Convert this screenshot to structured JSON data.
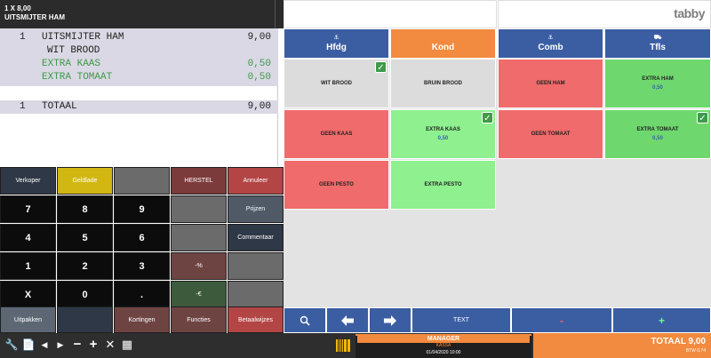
{
  "order_header": {
    "line1": "1  X 8,00",
    "line2": "UITSMIJTER HAM"
  },
  "receipt": {
    "lines": [
      {
        "qty": "1",
        "name": "UITSMIJTER HAM",
        "price": "9,00",
        "style": "main"
      },
      {
        "qty": "",
        "name": "WIT BROOD",
        "price": "",
        "style": "sub"
      },
      {
        "qty": "",
        "name": "EXTRA KAAS",
        "price": "0,50",
        "style": "extra"
      },
      {
        "qty": "",
        "name": "EXTRA TOMAAT",
        "price": "0,50",
        "style": "extra"
      }
    ],
    "total": {
      "qty": "1",
      "label": "TOTAAL",
      "price": "9,00"
    }
  },
  "logo": "tabby",
  "categories": [
    {
      "label": "Hfdg",
      "icon": "utensils-icon",
      "color": "#3b5ea3"
    },
    {
      "label": "Kond",
      "icon": "",
      "color": "#f28a3f"
    },
    {
      "label": "Comb",
      "icon": "utensils-icon",
      "color": "#3b5ea3"
    },
    {
      "label": "Tfls",
      "icon": "car-icon",
      "color": "#3b5ea3"
    }
  ],
  "products": [
    {
      "label": "WIT BROOD",
      "price": "",
      "checked": true,
      "color": "#dcdcdc"
    },
    {
      "label": "BRUIN BROOD",
      "price": "",
      "checked": false,
      "color": "#dcdcdc"
    },
    {
      "label": "GEEN HAM",
      "price": "",
      "checked": false,
      "color": "#f06b6b"
    },
    {
      "label": "EXTRA HAM",
      "price": "0,50",
      "checked": false,
      "color": "#6ed86e"
    },
    {
      "label": "GEEN KAAS",
      "price": "",
      "checked": false,
      "color": "#f06b6b"
    },
    {
      "label": "EXTRA KAAS",
      "price": "0,50",
      "checked": true,
      "color": "#8ef08e"
    },
    {
      "label": "GEEN TOMAAT",
      "price": "",
      "checked": false,
      "color": "#f06b6b"
    },
    {
      "label": "EXTRA TOMAAT",
      "price": "0,50",
      "checked": true,
      "color": "#6ed86e"
    },
    {
      "label": "GEEN PESTO",
      "price": "",
      "checked": false,
      "color": "#f06b6b"
    },
    {
      "label": "EXTRA PESTO",
      "price": "",
      "checked": false,
      "color": "#8ef08e"
    }
  ],
  "keypad": {
    "verkoper": "Verkoper",
    "geldlade": "Geldlade",
    "herstel": "HERSTEL",
    "annuleer": "Annuleer",
    "prijzen": "Prijzen",
    "commentaar": "Commentaar",
    "percent": "-%",
    "euro": "-€",
    "digits": [
      "7",
      "8",
      "9",
      "4",
      "5",
      "6",
      "1",
      "2",
      "3"
    ],
    "x": "X",
    "zero": "0",
    "dot": ".",
    "uitpakken": "Uitpakken",
    "kortingen": "Kortingen",
    "functies": "Functies",
    "betaalwijzes": "Betaalwijzes"
  },
  "actions": {
    "text": "TEXT",
    "minus": "-",
    "plus": "+"
  },
  "footer": {
    "manager": "MANAGER",
    "kassa": "KASSA",
    "datetime": "01/04/2020  10:00",
    "total": "TOTAAL 9,00",
    "btw": "BTW 0,74"
  }
}
